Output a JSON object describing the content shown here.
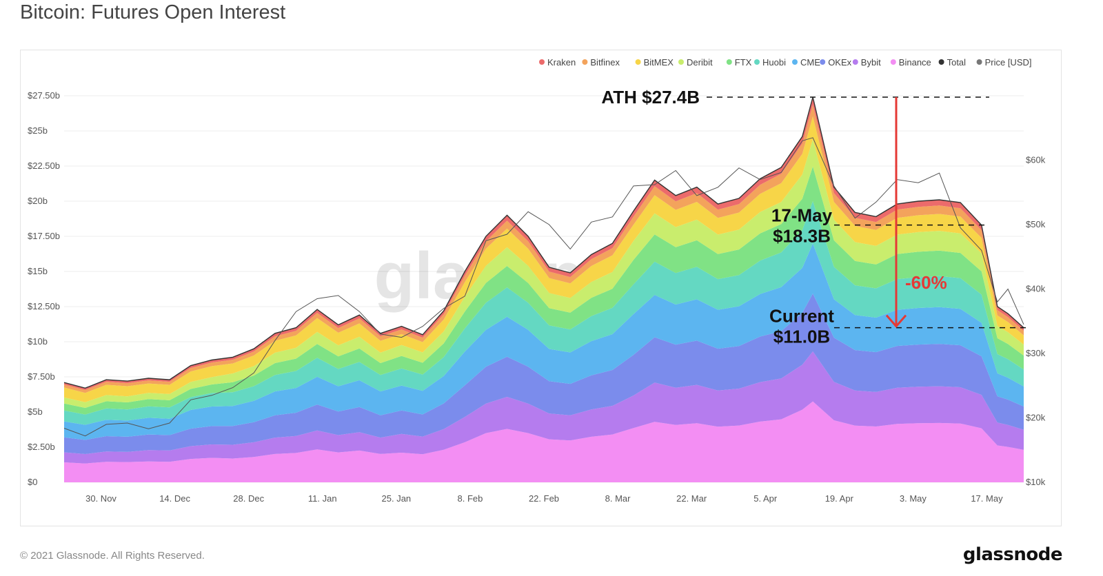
{
  "header": {
    "title": "Bitcoin: Futures Open Interest"
  },
  "footer": {
    "copyright": "© 2021 Glassnode. All Rights Reserved.",
    "logo_text": "glassnode"
  },
  "chart_data": {
    "type": "area",
    "stacked": true,
    "watermark": "glassnode",
    "x_ticks": [
      "30. Nov",
      "14. Dec",
      "28. Dec",
      "11. Jan",
      "25. Jan",
      "8. Feb",
      "22. Feb",
      "8. Mar",
      "22. Mar",
      "5. Apr",
      "19. Apr",
      "3. May",
      "17. May"
    ],
    "y_left_ticks": [
      "$0",
      "$2.50b",
      "$5b",
      "$7.50b",
      "$10b",
      "$12.50b",
      "$15b",
      "$17.50b",
      "$20b",
      "$22.50b",
      "$25b",
      "$27.50b"
    ],
    "y_left_range": [
      0,
      27.5
    ],
    "y_right_ticks": [
      "$10k",
      "$20k",
      "$30k",
      "$40k",
      "$50k",
      "$60k"
    ],
    "y_right_range": [
      10000,
      70000
    ],
    "grid": true,
    "legend_position": "top-right",
    "legend": [
      {
        "name": "Kraken",
        "color": "#ec6b6b"
      },
      {
        "name": "Bitfinex",
        "color": "#f3a35c"
      },
      {
        "name": "BitMEX",
        "color": "#f7d548"
      },
      {
        "name": "Deribit",
        "color": "#c9ed6d"
      },
      {
        "name": "FTX",
        "color": "#80e285"
      },
      {
        "name": "Huobi",
        "color": "#64d8c2"
      },
      {
        "name": "CME",
        "color": "#5cb5f0"
      },
      {
        "name": "OKEx",
        "color": "#7b8cec"
      },
      {
        "name": "Bybit",
        "color": "#b57cee"
      },
      {
        "name": "Binance",
        "color": "#f38ef3"
      },
      {
        "name": "Total",
        "color": "#333333"
      },
      {
        "name": "Price [USD]",
        "color": "#777777"
      }
    ],
    "dates": [
      "2020-11-23",
      "2020-11-27",
      "2020-12-01",
      "2020-12-05",
      "2020-12-09",
      "2020-12-13",
      "2020-12-17",
      "2020-12-21",
      "2020-12-25",
      "2020-12-29",
      "2021-01-02",
      "2021-01-06",
      "2021-01-10",
      "2021-01-14",
      "2021-01-18",
      "2021-01-22",
      "2021-01-26",
      "2021-01-30",
      "2021-02-03",
      "2021-02-07",
      "2021-02-11",
      "2021-02-15",
      "2021-02-19",
      "2021-02-23",
      "2021-02-27",
      "2021-03-03",
      "2021-03-07",
      "2021-03-11",
      "2021-03-15",
      "2021-03-19",
      "2021-03-23",
      "2021-03-27",
      "2021-03-31",
      "2021-04-04",
      "2021-04-08",
      "2021-04-12",
      "2021-04-14",
      "2021-04-18",
      "2021-04-22",
      "2021-04-26",
      "2021-04-30",
      "2021-05-04",
      "2021-05-08",
      "2021-05-12",
      "2021-05-16",
      "2021-05-19",
      "2021-05-21",
      "2021-05-24"
    ],
    "total_oi_b": [
      7.1,
      6.7,
      7.3,
      7.2,
      7.4,
      7.3,
      8.3,
      8.7,
      8.9,
      9.5,
      10.6,
      11.0,
      12.3,
      11.2,
      11.9,
      10.6,
      11.1,
      10.5,
      12.2,
      15.0,
      17.5,
      19.0,
      17.5,
      15.3,
      14.9,
      16.2,
      17.0,
      19.3,
      21.5,
      20.4,
      21.0,
      19.8,
      20.2,
      21.6,
      22.4,
      24.6,
      27.4,
      21.0,
      19.2,
      18.9,
      19.8,
      20.0,
      20.1,
      19.9,
      18.3,
      12.5,
      12.0,
      11.0
    ],
    "series_share": {
      "Kraken": [
        0.02,
        0.02,
        0.02,
        0.02,
        0.02,
        0.02,
        0.02,
        0.02,
        0.02,
        0.02,
        0.02,
        0.02,
        0.02,
        0.02,
        0.02,
        0.02,
        0.02,
        0.02,
        0.02,
        0.02,
        0.02,
        0.02,
        0.02,
        0.02,
        0.02,
        0.02,
        0.02,
        0.02,
        0.02,
        0.02,
        0.02,
        0.02,
        0.02,
        0.02,
        0.02,
        0.02,
        0.02,
        0.02,
        0.02,
        0.02,
        0.02,
        0.02,
        0.02,
        0.02,
        0.02,
        0.02,
        0.02,
        0.02
      ],
      "Bitfinex": [
        0.03,
        0.03,
        0.03,
        0.03,
        0.03,
        0.03,
        0.03,
        0.03,
        0.03,
        0.03,
        0.03,
        0.03,
        0.03,
        0.03,
        0.03,
        0.03,
        0.03,
        0.03,
        0.03,
        0.03,
        0.03,
        0.03,
        0.03,
        0.03,
        0.03,
        0.03,
        0.03,
        0.03,
        0.03,
        0.03,
        0.03,
        0.03,
        0.03,
        0.03,
        0.03,
        0.03,
        0.03,
        0.03,
        0.03,
        0.03,
        0.03,
        0.03,
        0.03,
        0.03,
        0.03,
        0.03,
        0.03,
        0.03
      ],
      "BitMEX": [
        0.1,
        0.1,
        0.1,
        0.1,
        0.09,
        0.09,
        0.09,
        0.09,
        0.08,
        0.08,
        0.08,
        0.08,
        0.08,
        0.08,
        0.08,
        0.08,
        0.07,
        0.07,
        0.07,
        0.07,
        0.07,
        0.07,
        0.07,
        0.07,
        0.07,
        0.07,
        0.07,
        0.06,
        0.06,
        0.06,
        0.06,
        0.06,
        0.06,
        0.06,
        0.06,
        0.06,
        0.06,
        0.06,
        0.06,
        0.06,
        0.06,
        0.06,
        0.06,
        0.06,
        0.06,
        0.06,
        0.06,
        0.06
      ],
      "Deribit": [
        0.06,
        0.06,
        0.06,
        0.06,
        0.06,
        0.06,
        0.06,
        0.06,
        0.07,
        0.07,
        0.07,
        0.07,
        0.07,
        0.07,
        0.07,
        0.07,
        0.07,
        0.07,
        0.07,
        0.07,
        0.07,
        0.07,
        0.07,
        0.07,
        0.07,
        0.07,
        0.07,
        0.07,
        0.07,
        0.07,
        0.07,
        0.07,
        0.07,
        0.07,
        0.07,
        0.07,
        0.07,
        0.07,
        0.07,
        0.07,
        0.07,
        0.07,
        0.07,
        0.07,
        0.07,
        0.07,
        0.07,
        0.07
      ],
      "FTX": [
        0.07,
        0.07,
        0.07,
        0.07,
        0.07,
        0.07,
        0.07,
        0.07,
        0.08,
        0.08,
        0.08,
        0.08,
        0.08,
        0.08,
        0.08,
        0.08,
        0.08,
        0.08,
        0.08,
        0.08,
        0.08,
        0.08,
        0.08,
        0.08,
        0.08,
        0.08,
        0.08,
        0.09,
        0.09,
        0.09,
        0.09,
        0.09,
        0.09,
        0.09,
        0.09,
        0.09,
        0.09,
        0.09,
        0.09,
        0.09,
        0.09,
        0.09,
        0.09,
        0.09,
        0.09,
        0.09,
        0.09,
        0.09
      ],
      "Huobi": [
        0.11,
        0.11,
        0.11,
        0.11,
        0.11,
        0.11,
        0.11,
        0.11,
        0.11,
        0.11,
        0.11,
        0.11,
        0.11,
        0.11,
        0.11,
        0.11,
        0.11,
        0.11,
        0.11,
        0.11,
        0.11,
        0.11,
        0.11,
        0.11,
        0.11,
        0.11,
        0.11,
        0.11,
        0.11,
        0.11,
        0.11,
        0.11,
        0.11,
        0.11,
        0.11,
        0.11,
        0.11,
        0.11,
        0.11,
        0.11,
        0.11,
        0.11,
        0.11,
        0.11,
        0.11,
        0.11,
        0.11,
        0.11
      ],
      "CME": [
        0.16,
        0.16,
        0.16,
        0.16,
        0.16,
        0.16,
        0.16,
        0.16,
        0.16,
        0.16,
        0.16,
        0.16,
        0.16,
        0.16,
        0.16,
        0.16,
        0.16,
        0.16,
        0.16,
        0.16,
        0.15,
        0.15,
        0.15,
        0.15,
        0.15,
        0.15,
        0.15,
        0.15,
        0.14,
        0.14,
        0.14,
        0.14,
        0.14,
        0.14,
        0.14,
        0.13,
        0.13,
        0.13,
        0.13,
        0.13,
        0.13,
        0.13,
        0.13,
        0.13,
        0.13,
        0.13,
        0.13,
        0.13
      ],
      "OKEx": [
        0.15,
        0.15,
        0.15,
        0.15,
        0.15,
        0.15,
        0.15,
        0.15,
        0.15,
        0.15,
        0.15,
        0.15,
        0.15,
        0.15,
        0.15,
        0.15,
        0.15,
        0.15,
        0.15,
        0.15,
        0.15,
        0.15,
        0.15,
        0.15,
        0.15,
        0.15,
        0.15,
        0.15,
        0.15,
        0.15,
        0.15,
        0.15,
        0.15,
        0.15,
        0.15,
        0.15,
        0.15,
        0.15,
        0.15,
        0.15,
        0.15,
        0.15,
        0.15,
        0.15,
        0.15,
        0.15,
        0.15,
        0.15
      ],
      "Bybit": [
        0.1,
        0.1,
        0.1,
        0.1,
        0.11,
        0.11,
        0.11,
        0.11,
        0.11,
        0.11,
        0.11,
        0.11,
        0.11,
        0.11,
        0.11,
        0.11,
        0.12,
        0.12,
        0.12,
        0.12,
        0.12,
        0.12,
        0.12,
        0.12,
        0.12,
        0.12,
        0.12,
        0.12,
        0.13,
        0.13,
        0.13,
        0.13,
        0.13,
        0.13,
        0.13,
        0.13,
        0.13,
        0.13,
        0.13,
        0.13,
        0.13,
        0.13,
        0.13,
        0.13,
        0.13,
        0.13,
        0.13,
        0.13
      ],
      "Binance": [
        0.2,
        0.2,
        0.2,
        0.2,
        0.2,
        0.2,
        0.2,
        0.2,
        0.19,
        0.19,
        0.19,
        0.19,
        0.19,
        0.19,
        0.19,
        0.19,
        0.19,
        0.19,
        0.19,
        0.19,
        0.2,
        0.2,
        0.2,
        0.2,
        0.2,
        0.2,
        0.2,
        0.2,
        0.2,
        0.2,
        0.2,
        0.2,
        0.2,
        0.2,
        0.2,
        0.21,
        0.21,
        0.21,
        0.21,
        0.21,
        0.21,
        0.21,
        0.21,
        0.21,
        0.21,
        0.21,
        0.21,
        0.21
      ]
    },
    "price_usd": [
      18400,
      17200,
      19000,
      19200,
      18300,
      19200,
      22800,
      23500,
      24700,
      27000,
      32000,
      36500,
      38500,
      39000,
      36500,
      33000,
      32500,
      34200,
      37000,
      38900,
      47500,
      48500,
      52000,
      50000,
      46200,
      50400,
      51200,
      56000,
      56200,
      58400,
      54500,
      55800,
      58800,
      57000,
      58100,
      63000,
      63500,
      56000,
      51000,
      53500,
      57000,
      56500,
      58000,
      49500,
      46000,
      38000,
      40000,
      34500
    ],
    "annotations": [
      {
        "label": "ATH $27.4B",
        "value_b": 27.4
      },
      {
        "label": "17-May",
        "label2": "$18.3B",
        "value_b": 18.3
      },
      {
        "label": "Current",
        "label2": "$11.0B",
        "value_b": 11.0
      },
      {
        "label": "-60%",
        "color": "#e53935"
      }
    ]
  }
}
